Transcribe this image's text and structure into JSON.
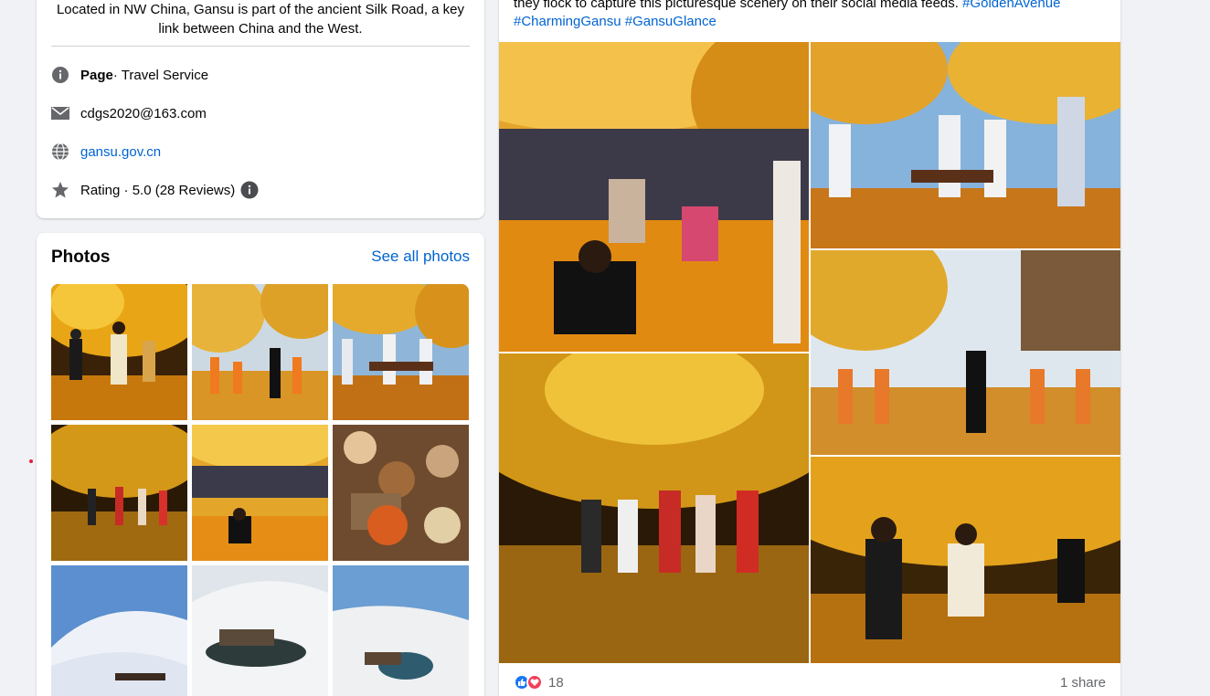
{
  "intro": {
    "description": "Located in NW China, Gansu is part of the ancient Silk Road, a key link between China and the West.",
    "page_label": "Page",
    "page_category": " · Travel Service",
    "email": "cdgs2020@163.com",
    "website": "gansu.gov.cn",
    "rating": "Rating · 5.0 (28 Reviews)"
  },
  "photos": {
    "title": "Photos",
    "see_all": "See all photos",
    "tiles": [
      {
        "icon": "ginkgo-night-photo"
      },
      {
        "icon": "ginkgo-street-crowd-photo"
      },
      {
        "icon": "ginkgo-performers-photo"
      },
      {
        "icon": "ginkgo-night-dance-photo"
      },
      {
        "icon": "ginkgo-crowd-photo"
      },
      {
        "icon": "tea-table-photo"
      },
      {
        "icon": "desert-camels-photo"
      },
      {
        "icon": "crescent-spring-snow-photo"
      },
      {
        "icon": "oasis-snow-photo"
      }
    ]
  },
  "post": {
    "text_line1": "they flock to capture this picturesque scenery on their social media feeds. ",
    "tag1": "#GoldenAvenue",
    "tag2": "#CharmingGansu",
    "tag3": "#GansuGlance",
    "reactions_count": "18",
    "shares": "1 share"
  },
  "colors": {
    "link": "#0064d1",
    "like_blue": "#1877f2",
    "love_red": "#f33e58",
    "background": "#f0f2f5"
  }
}
